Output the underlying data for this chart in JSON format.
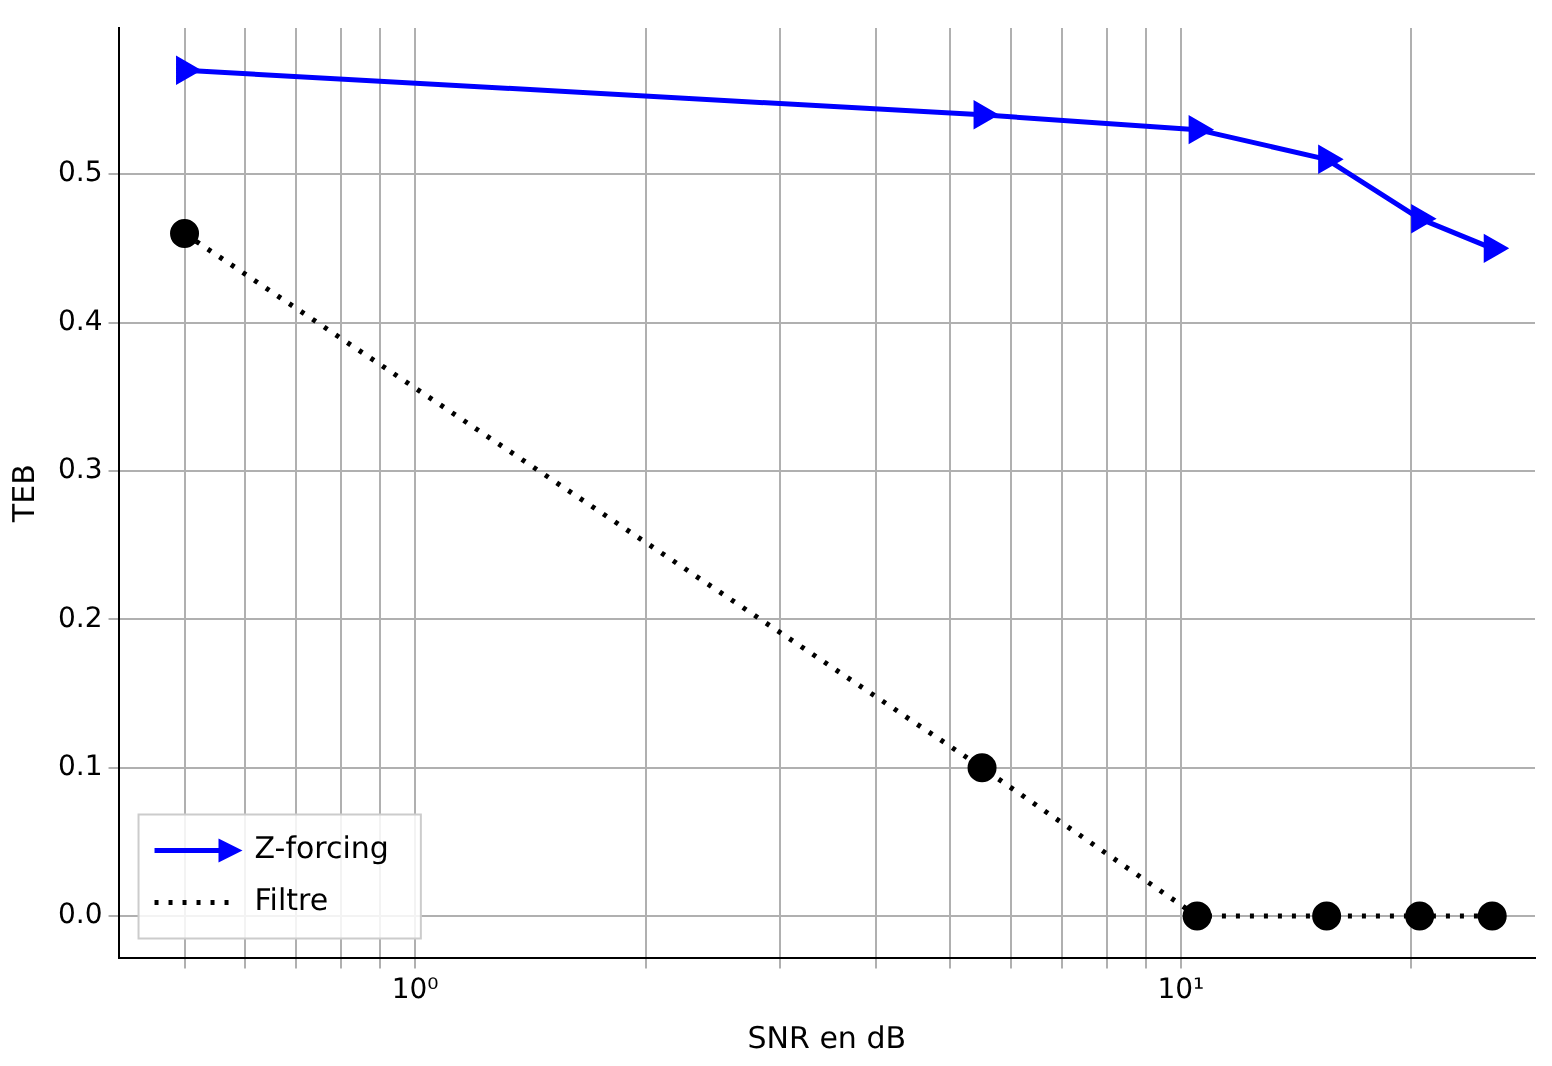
{
  "chart_data": {
    "type": "line",
    "xlabel": "SNR en dB",
    "ylabel": "TEB",
    "log": "x",
    "x": [
      0.5,
      5.5,
      10.5,
      15.5,
      20.5,
      25.5
    ],
    "series": [
      {
        "name": "Z-forcing",
        "color": "#0000ff",
        "values": [
          0.57,
          0.54,
          0.53,
          0.51,
          0.47,
          0.45
        ],
        "marker": "triangle",
        "line_style": "solid"
      },
      {
        "name": "Filtre",
        "color": "#000000",
        "values": [
          0.46,
          0.1,
          0,
          0,
          0,
          0
        ],
        "marker": "circle",
        "line_style": "dotted"
      }
    ],
    "xlim": [
      0.41,
      29
    ],
    "xticks": [
      {
        "value": 0.5,
        "label": null
      },
      {
        "value": 0.6,
        "label": null
      },
      {
        "value": 0.7,
        "label": null
      },
      {
        "value": 0.8,
        "label": null
      },
      {
        "value": 0.9,
        "label": null
      },
      {
        "value": 1,
        "label": "10⁰"
      },
      {
        "value": 2,
        "label": null
      },
      {
        "value": 3,
        "label": null
      },
      {
        "value": 4,
        "label": null
      },
      {
        "value": 5,
        "label": null
      },
      {
        "value": 6,
        "label": null
      },
      {
        "value": 7,
        "label": null
      },
      {
        "value": 8,
        "label": null
      },
      {
        "value": 9,
        "label": null
      },
      {
        "value": 10,
        "label": "10¹"
      },
      {
        "value": 20,
        "label": null
      }
    ],
    "ylim": [
      -0.0285,
      0.5985
    ],
    "yticks": [
      {
        "value": 0,
        "label": "0.0"
      },
      {
        "value": 0.1,
        "label": "0.1"
      },
      {
        "value": 0.2,
        "label": "0.2"
      },
      {
        "value": 0.3,
        "label": "0.3"
      },
      {
        "value": 0.4,
        "label": "0.4"
      },
      {
        "value": 0.5,
        "label": "0.5"
      }
    ],
    "grid": true,
    "legend": "bottom left"
  }
}
